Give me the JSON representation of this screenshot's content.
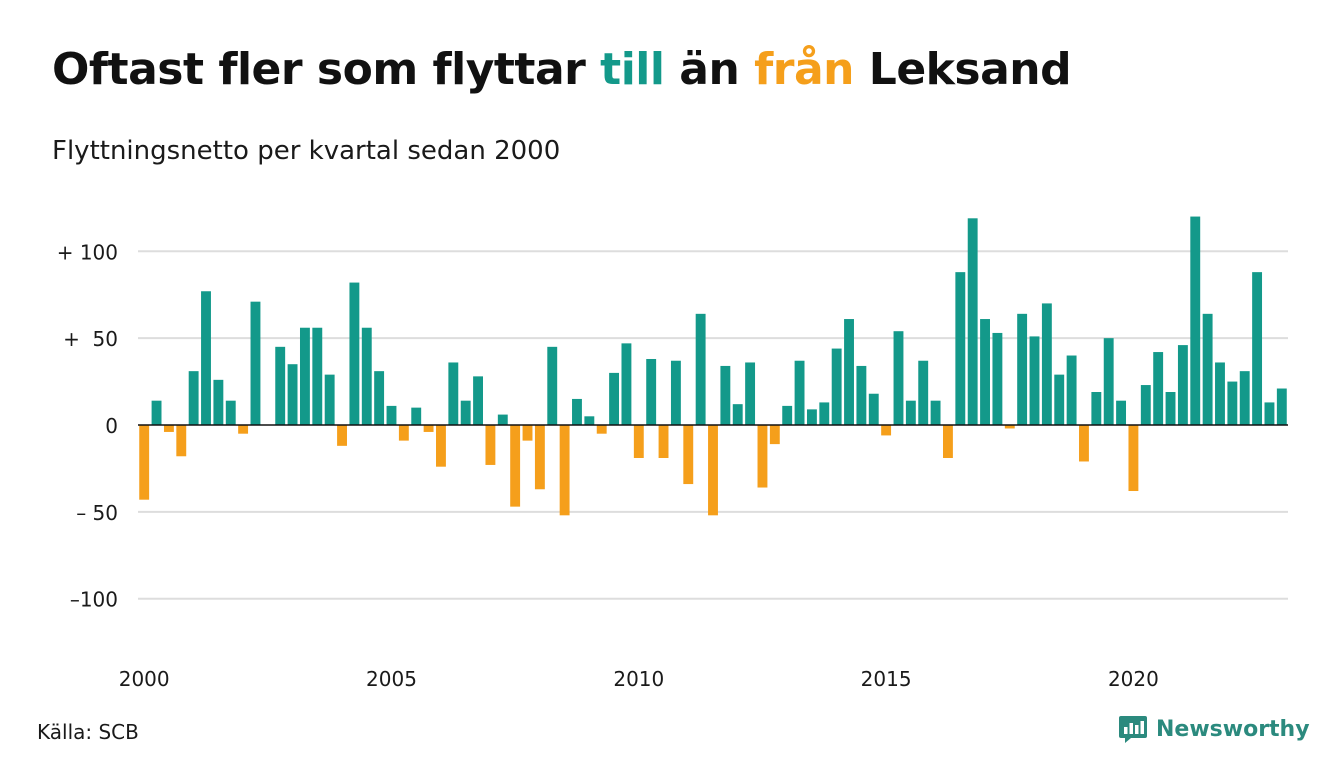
{
  "header": {
    "title_part1": "Oftast fler som flyttar ",
    "title_till": "till",
    "title_part2": " än ",
    "title_fran": "från",
    "title_part3": " Leksand",
    "subtitle": "Flyttningsnetto per kvartal sedan 2000"
  },
  "footer": {
    "source": "Källa: SCB",
    "brand": "Newsworthy"
  },
  "colors": {
    "positive": "#13998a",
    "negative": "#f59f1b",
    "grid": "#dddddd",
    "axis": "#111111",
    "brand": "#2b8a7e"
  },
  "icons": {
    "brand": "chart-speech-bubble-icon"
  },
  "chart_data": {
    "type": "bar",
    "title": "Oftast fler som flyttar till än från Leksand",
    "subtitle": "Flyttningsnetto per kvartal sedan 2000",
    "x_start": "2000 Q1",
    "x_ticks": [
      "2000",
      "2005",
      "2010",
      "2015",
      "2020"
    ],
    "y_ticks": [
      {
        "value": 100,
        "label": "+ 100"
      },
      {
        "value": 50,
        "label": "+  50"
      },
      {
        "value": 0,
        "label": "0"
      },
      {
        "value": -50,
        "label": "– 50"
      },
      {
        "value": -100,
        "label": "–100"
      }
    ],
    "ylim": [
      -130,
      125
    ],
    "grid": true,
    "values": [
      -43,
      14,
      -4,
      -18,
      31,
      77,
      26,
      14,
      -5,
      71,
      0,
      45,
      35,
      56,
      56,
      29,
      -12,
      82,
      56,
      31,
      11,
      -9,
      10,
      -4,
      -24,
      36,
      14,
      28,
      -23,
      6,
      -47,
      -9,
      -37,
      45,
      -52,
      15,
      5,
      -5,
      30,
      47,
      -19,
      38,
      -19,
      37,
      -34,
      64,
      -52,
      34,
      12,
      36,
      -36,
      -11,
      11,
      37,
      9,
      13,
      44,
      61,
      34,
      18,
      -6,
      54,
      14,
      37,
      14,
      -19,
      88,
      119,
      61,
      53,
      -2,
      64,
      51,
      70,
      29,
      40,
      -21,
      19,
      50,
      14,
      -38,
      23,
      42,
      19,
      46,
      120,
      64,
      36,
      25,
      31,
      88,
      13,
      21
    ]
  }
}
